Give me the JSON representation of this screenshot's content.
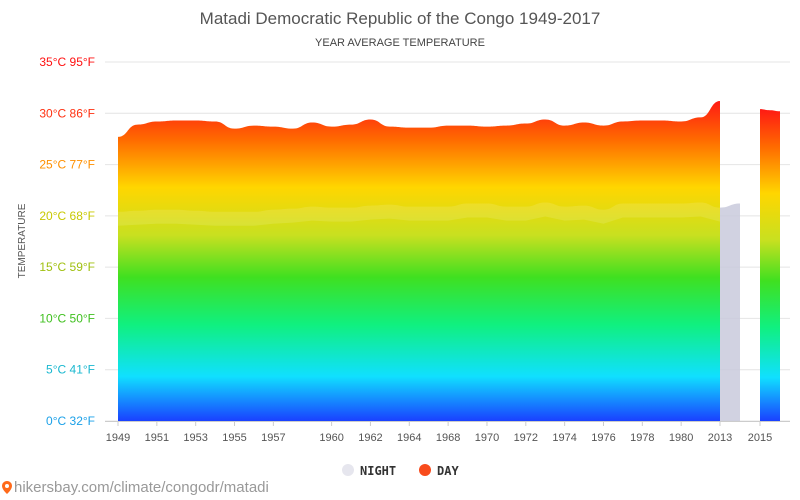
{
  "colors": {
    "night": "#e6e6ee",
    "day": "#f84b1c",
    "gradient_stops": [
      "#2218b8",
      "#20b4cc",
      "#10cc50",
      "#d8e012",
      "#ffd400",
      "#ff7a00",
      "#ff2020"
    ]
  },
  "watermark": "hikersbay.com/climate/congodr/matadi",
  "chart_data": {
    "type": "area",
    "title": "Matadi Democratic Republic of the Congo 1949-2017",
    "subtitle": "YEAR AVERAGE TEMPERATURE",
    "ylabel": "TEMPERATURE",
    "xlabel": "",
    "ylim": [
      0,
      35
    ],
    "yticks": [
      {
        "value": 0,
        "label": "0°C 32°F",
        "color": "#1aa0e8"
      },
      {
        "value": 5,
        "label": "5°C 41°F",
        "color": "#1ab8d0"
      },
      {
        "value": 10,
        "label": "10°C 50°F",
        "color": "#40c020"
      },
      {
        "value": 15,
        "label": "15°C 59°F",
        "color": "#a0c010"
      },
      {
        "value": 20,
        "label": "20°C 68°F",
        "color": "#c8c800"
      },
      {
        "value": 25,
        "label": "25°C 77°F",
        "color": "#ff9000"
      },
      {
        "value": 30,
        "label": "30°C 86°F",
        "color": "#ff3010"
      },
      {
        "value": 35,
        "label": "35°C 95°F",
        "color": "#ff1010"
      }
    ],
    "x_tick_labels": [
      "1949",
      "1951",
      "1953",
      "1955",
      "1957",
      "1960",
      "1962",
      "1964",
      "1968",
      "1970",
      "1972",
      "1974",
      "1976",
      "1978",
      "1980",
      "2013",
      "2015"
    ],
    "legend": [
      {
        "name": "NIGHT",
        "color": "#e6e6ee"
      },
      {
        "name": "DAY",
        "color": "#f84b1c"
      }
    ],
    "series": [
      {
        "name": "DAY",
        "x": [
          "1949",
          "1950",
          "1951",
          "1952",
          "1953",
          "1954",
          "1955",
          "1956",
          "1957",
          "1958",
          "1959",
          "1960",
          "1961",
          "1962",
          "1963",
          "1964",
          "1965",
          "1968",
          "1969",
          "1970",
          "1971",
          "1972",
          "1973",
          "1974",
          "1975",
          "1976",
          "1977",
          "1978",
          "1979",
          "1980",
          "1981",
          "2013",
          "2014",
          "2015",
          "2016",
          "2017"
        ],
        "values": [
          27.7,
          28.9,
          29.2,
          29.3,
          29.3,
          29.2,
          28.5,
          28.8,
          28.7,
          28.5,
          29.1,
          28.7,
          28.9,
          29.4,
          28.7,
          28.6,
          28.6,
          28.8,
          28.8,
          28.7,
          28.8,
          29.0,
          29.4,
          28.8,
          29.1,
          28.8,
          29.2,
          29.3,
          29.3,
          29.2,
          29.6,
          31.2,
          null,
          30.4,
          30.3,
          30.2
        ]
      },
      {
        "name": "NIGHT",
        "x": [
          "1949",
          "1950",
          "1951",
          "1952",
          "1953",
          "1954",
          "1955",
          "1956",
          "1957",
          "1958",
          "1959",
          "1960",
          "1961",
          "1962",
          "1963",
          "1964",
          "1965",
          "1968",
          "1969",
          "1970",
          "1971",
          "1972",
          "1973",
          "1974",
          "1975",
          "1976",
          "1977",
          "1978",
          "1979",
          "1980",
          "1981",
          "2013",
          "2014",
          "2015",
          "2016",
          "2017"
        ],
        "values": [
          20.4,
          20.5,
          20.6,
          20.6,
          20.5,
          20.4,
          20.4,
          20.4,
          20.6,
          20.7,
          20.9,
          20.8,
          20.8,
          21.0,
          21.1,
          20.9,
          20.9,
          20.9,
          21.2,
          21.2,
          20.9,
          20.9,
          21.3,
          20.9,
          21.0,
          20.6,
          21.2,
          21.2,
          21.2,
          21.2,
          21.3,
          20.8,
          21.2,
          null,
          null,
          null
        ]
      }
    ]
  }
}
